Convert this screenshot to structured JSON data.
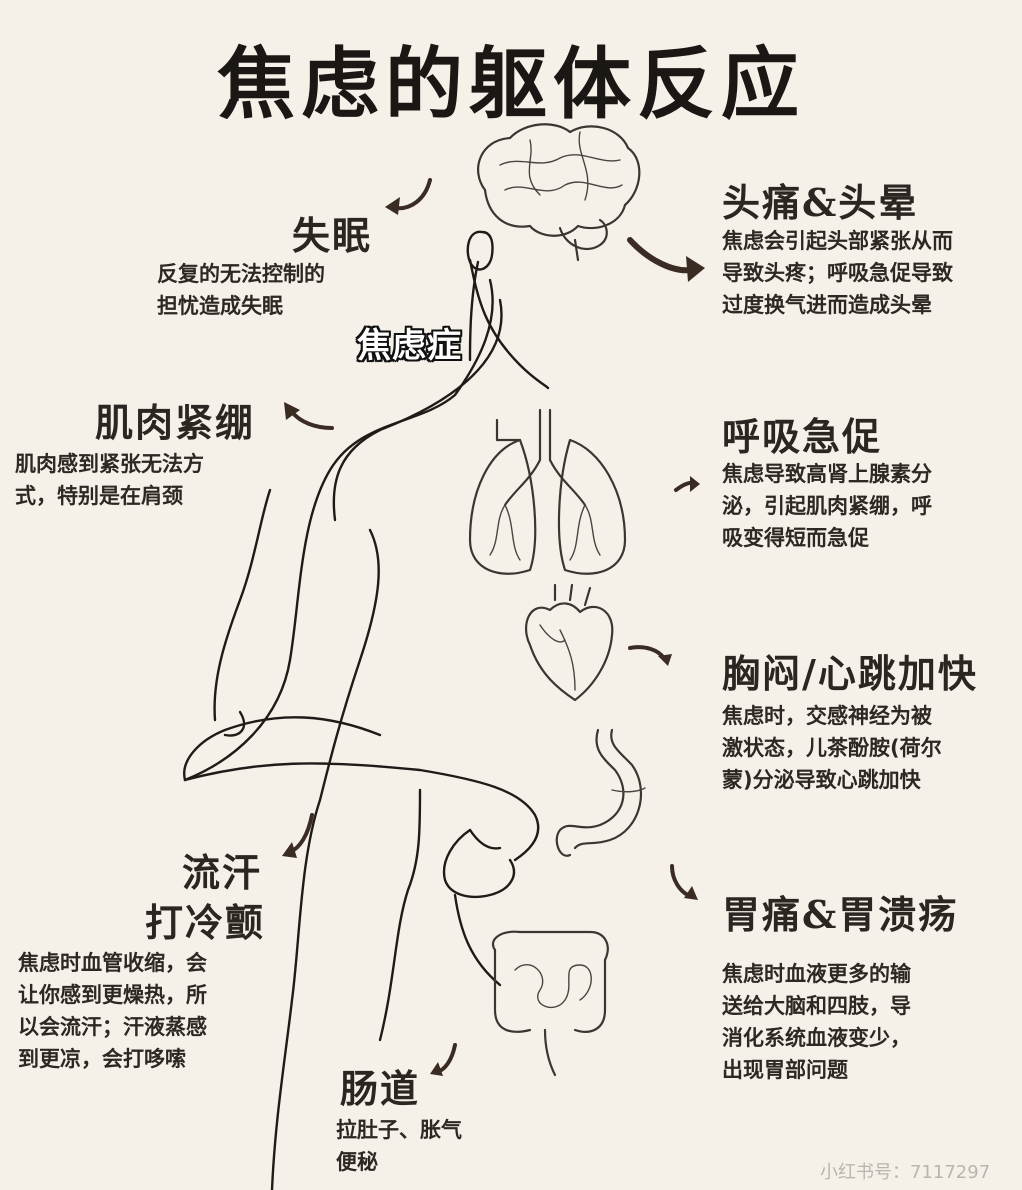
{
  "title": "焦虑的躯体反应",
  "center_label": "焦虑症",
  "sections": {
    "insomnia": {
      "heading": "失眠",
      "desc_lines": [
        "反复的无法控制的",
        "担忧造成失眠"
      ]
    },
    "headache": {
      "heading": "头痛&头晕",
      "desc_lines": [
        "焦虑会引起头部紧张从而",
        "导致头疼；呼吸急促导致",
        "过度换气进而造成头晕"
      ]
    },
    "muscle": {
      "heading": "肌肉紧绷",
      "desc_lines": [
        "肌肉感到紧张无法方",
        "式，特别是在肩颈"
      ]
    },
    "breathing": {
      "heading": "呼吸急促",
      "desc_lines": [
        "焦虑导致高肾上腺素分",
        "泌，引起肌肉紧绷，呼",
        "吸变得短而急促"
      ]
    },
    "chest": {
      "heading": "胸闷/心跳加快",
      "desc_lines": [
        "焦虑时，交感神经为被",
        "激状态，儿茶酚胺(荷尔",
        "蒙)分泌导致心跳加快"
      ]
    },
    "sweat": {
      "heading_line1": "流汗",
      "heading_line2": "打冷颤",
      "desc_lines": [
        "焦虑时血管收缩，会",
        "让你感到更燥热，所",
        "以会流汗；汗液蒸感",
        "到更凉，会打哆嗦"
      ]
    },
    "stomach": {
      "heading": "胃痛&胃溃疡",
      "desc_lines": [
        "焦虑时血液更多的输",
        "送给大脑和四肢，导",
        "消化系统血液变少，",
        "出现胃部问题"
      ]
    },
    "intestine": {
      "heading": "肠道",
      "desc_lines": [
        "拉肚子、胀气",
        "便秘"
      ]
    }
  },
  "watermark": "小红书号：7117297"
}
